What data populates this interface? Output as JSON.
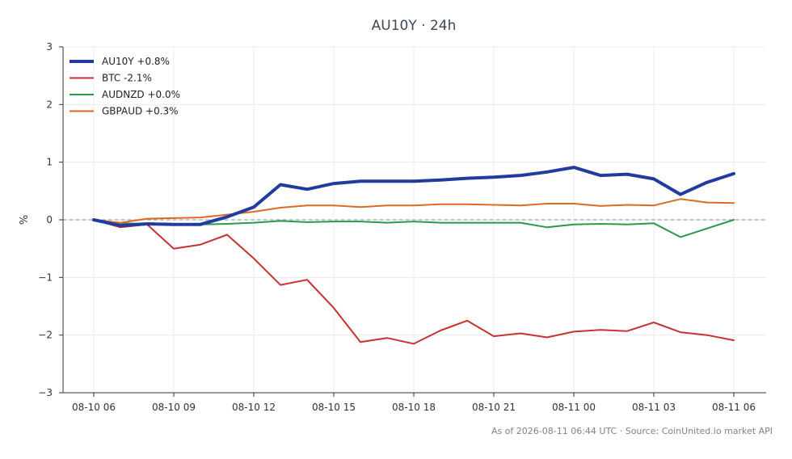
{
  "chart_data": {
    "type": "line",
    "title": "AU10Y · 24h",
    "ylabel": "%",
    "xlabel": "",
    "ylim": [
      -3,
      3
    ],
    "yticks": [
      3,
      2,
      1,
      0,
      -1,
      -2,
      -3
    ],
    "ytick_labels": [
      "3",
      "2",
      "1",
      "0",
      "−1",
      "−2",
      "−3"
    ],
    "xtick_labels": [
      "08-10 06",
      "08-10 09",
      "08-10 12",
      "08-10 15",
      "08-10 18",
      "08-10 21",
      "08-11 00",
      "08-11 03",
      "08-11 06"
    ],
    "xtick_hours": [
      0,
      3,
      6,
      9,
      12,
      15,
      18,
      21,
      24
    ],
    "x_hours": [
      0,
      1,
      2,
      3,
      4,
      5,
      6,
      7,
      8,
      9,
      10,
      11,
      12,
      13,
      14,
      15,
      16,
      17,
      18,
      19,
      20,
      21,
      22,
      23,
      24
    ],
    "grid": true,
    "legend_position": "top-left",
    "series": [
      {
        "name": "AU10Y +0.8%",
        "color": "#1f3c9e",
        "bold": true,
        "values": [
          0.0,
          -0.1,
          -0.07,
          -0.08,
          -0.08,
          0.05,
          0.22,
          0.61,
          0.53,
          0.63,
          0.67,
          0.67,
          0.67,
          0.69,
          0.72,
          0.74,
          0.77,
          0.83,
          0.91,
          0.77,
          0.79,
          0.71,
          0.44,
          0.65,
          0.8
        ]
      },
      {
        "name": "BTC -2.1%",
        "color": "#c83232",
        "bold": false,
        "values": [
          0.0,
          -0.13,
          -0.08,
          -0.5,
          -0.43,
          -0.26,
          -0.67,
          -1.13,
          -1.04,
          -1.53,
          -2.12,
          -2.05,
          -2.15,
          -1.92,
          -1.75,
          -2.02,
          -1.97,
          -2.04,
          -1.94,
          -1.91,
          -1.93,
          -1.78,
          -1.95,
          -2.0,
          -2.09
        ]
      },
      {
        "name": "AUDNZD +0.0%",
        "color": "#2a9a4a",
        "bold": false,
        "values": [
          0.0,
          -0.06,
          -0.07,
          -0.09,
          -0.08,
          -0.07,
          -0.05,
          -0.02,
          -0.04,
          -0.03,
          -0.03,
          -0.05,
          -0.03,
          -0.05,
          -0.05,
          -0.05,
          -0.05,
          -0.13,
          -0.08,
          -0.07,
          -0.08,
          -0.06,
          -0.3,
          -0.15,
          0.0
        ]
      },
      {
        "name": "GBPAUD +0.3%",
        "color": "#dd6a22",
        "bold": false,
        "values": [
          0.0,
          -0.05,
          0.02,
          0.03,
          0.04,
          0.09,
          0.14,
          0.21,
          0.25,
          0.25,
          0.22,
          0.25,
          0.25,
          0.27,
          0.27,
          0.26,
          0.25,
          0.28,
          0.28,
          0.24,
          0.26,
          0.25,
          0.36,
          0.3,
          0.29
        ]
      }
    ],
    "zero_line": true,
    "footer": "As of 2026-08-11 06:44 UTC · Source: CoinUnited.io market API"
  }
}
